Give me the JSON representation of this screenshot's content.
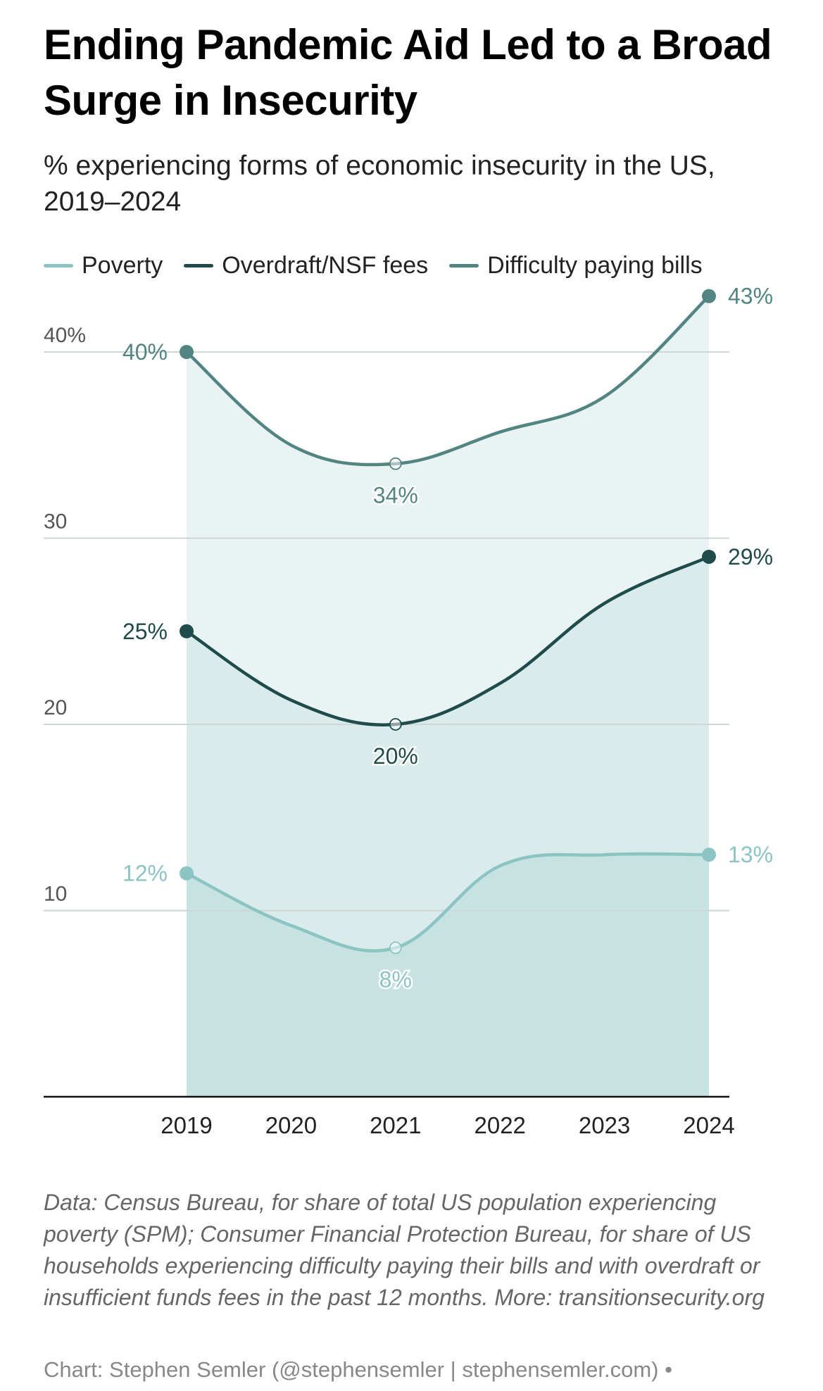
{
  "chart_data": {
    "type": "area",
    "title": "Ending Pandemic Aid Led to a Broad Surge in Insecurity",
    "subtitle": "% experiencing forms of economic insecurity in the US, 2019–2024",
    "xlabel": "",
    "ylabel": "",
    "x": [
      "2019",
      "2020",
      "2021",
      "2022",
      "2023",
      "2024"
    ],
    "ylim": [
      0,
      43
    ],
    "yticks": [
      {
        "value": 10,
        "label": "10"
      },
      {
        "value": 20,
        "label": "20"
      },
      {
        "value": 30,
        "label": "30"
      },
      {
        "value": 40,
        "label": "40%"
      }
    ],
    "grid": true,
    "legend_position": "top-left",
    "series": [
      {
        "name": "Difficulty paying bills",
        "color": "#528582",
        "fill": "#eaf3f3",
        "values": [
          40,
          35,
          34,
          35.7,
          37.6,
          43
        ],
        "labels": [
          {
            "index": 0,
            "text": "40%",
            "position": "left"
          },
          {
            "index": 2,
            "text": "34%",
            "position": "below"
          },
          {
            "index": 5,
            "text": "43%",
            "position": "right"
          }
        ]
      },
      {
        "name": "Overdraft/NSF fees",
        "color": "#1f4b4b",
        "fill": "#d9ebea",
        "values": [
          25,
          21.3,
          20,
          22.2,
          26.5,
          29
        ],
        "labels": [
          {
            "index": 0,
            "text": "25%",
            "position": "left"
          },
          {
            "index": 2,
            "text": "20%",
            "position": "below"
          },
          {
            "index": 5,
            "text": "29%",
            "position": "right"
          }
        ]
      },
      {
        "name": "Poverty",
        "color": "#8cc4c4",
        "fill": "#c6e2e1",
        "values": [
          12,
          9.2,
          8,
          12.4,
          13,
          13
        ],
        "labels": [
          {
            "index": 0,
            "text": "12%",
            "position": "left"
          },
          {
            "index": 2,
            "text": "8%",
            "position": "below"
          },
          {
            "index": 5,
            "text": "13%",
            "position": "right"
          }
        ]
      }
    ]
  },
  "legend_order": [
    "Poverty",
    "Overdraft/NSF fees",
    "Difficulty paying bills"
  ],
  "notes": "Data: Census Bureau, for share of total US population experiencing poverty (SPM); Consumer Financial Protection Bureau, for share of US households experiencing difficulty paying their bills and with overdraft or insufficient funds fees in the past 12 months. More: transitionsecurity.org",
  "credit": "Chart: Stephen Semler (@stephensemler | stephensemler.com) •"
}
